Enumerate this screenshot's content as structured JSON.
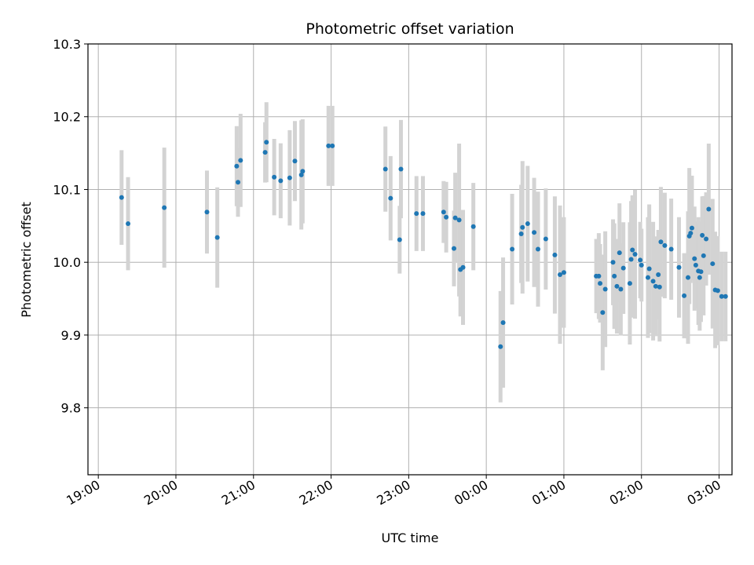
{
  "chart_data": {
    "type": "scatter",
    "title": "Photometric offset variation",
    "xlabel": "UTC time",
    "ylabel": "Photometric offset",
    "x_tick_labels": [
      "19:00",
      "20:00",
      "21:00",
      "22:00",
      "23:00",
      "00:00",
      "01:00",
      "02:00",
      "03:00"
    ],
    "y_tick_labels": [
      "9.8",
      "9.9",
      "10.0",
      "10.1",
      "10.2",
      "10.3"
    ],
    "x_unit": "minutes after 19:00 UTC",
    "xlim": [
      -8,
      490
    ],
    "ylim": [
      9.708,
      10.3
    ],
    "grid": true,
    "colors": {
      "point": "#1f77b4",
      "errorbar": "#d3d3d3",
      "grid": "#b0b0b0"
    },
    "series": [
      {
        "points": [
          [
            18,
            10.089,
            0.13
          ],
          [
            23,
            10.053,
            0.128
          ],
          [
            51,
            10.075,
            0.165
          ],
          [
            84,
            10.069,
            0.114
          ],
          [
            92,
            10.034,
            0.138
          ],
          [
            107,
            10.132,
            0.11
          ],
          [
            108,
            10.11,
            0.095
          ],
          [
            110,
            10.14,
            0.128
          ],
          [
            129,
            10.151,
            0.083
          ],
          [
            130,
            10.165,
            0.11
          ],
          [
            136,
            10.117,
            0.105
          ],
          [
            141,
            10.112,
            0.103
          ],
          [
            148,
            10.116,
            0.131
          ],
          [
            152,
            10.139,
            0.11
          ],
          [
            157,
            10.12,
            0.15
          ],
          [
            158,
            10.125,
            0.143
          ],
          [
            178,
            10.16,
            0.11
          ],
          [
            181,
            10.16,
            0.11
          ],
          [
            222,
            10.128,
            0.117
          ],
          [
            226,
            10.088,
            0.116
          ],
          [
            233,
            10.031,
            0.093
          ],
          [
            234,
            10.128,
            0.135
          ],
          [
            246,
            10.067,
            0.103
          ],
          [
            251,
            10.067,
            0.103
          ],
          [
            267,
            10.069,
            0.085
          ],
          [
            269,
            10.062,
            0.097
          ],
          [
            275,
            10.019,
            0.104
          ],
          [
            276,
            10.061,
            0.124
          ],
          [
            279,
            10.058,
            0.21
          ],
          [
            280,
            9.99,
            0.129
          ],
          [
            282,
            9.993,
            0.158
          ],
          [
            290,
            10.049,
            0.12
          ],
          [
            311,
            9.884,
            0.153
          ],
          [
            313,
            9.917,
            0.179
          ],
          [
            320,
            10.018,
            0.152
          ],
          [
            327,
            10.039,
            0.135
          ],
          [
            328,
            10.048,
            0.182
          ],
          [
            332,
            10.053,
            0.159
          ],
          [
            337,
            10.041,
            0.15
          ],
          [
            340,
            10.018,
            0.158
          ],
          [
            346,
            10.032,
            0.139
          ],
          [
            353,
            10.01,
            0.161
          ],
          [
            357,
            9.983,
            0.19
          ],
          [
            360,
            9.986,
            0.152
          ],
          [
            385,
            9.981,
            0.102
          ],
          [
            387,
            9.981,
            0.118
          ],
          [
            388,
            9.971,
            0.108
          ],
          [
            390,
            9.931,
            0.159
          ],
          [
            392,
            9.963,
            0.159
          ],
          [
            398,
            10.0,
            0.118
          ],
          [
            399,
            9.981,
            0.145
          ],
          [
            401,
            9.967,
            0.13
          ],
          [
            403,
            10.013,
            0.136
          ],
          [
            404,
            9.963,
            0.127
          ],
          [
            406,
            9.992,
            0.126
          ],
          [
            411,
            9.971,
            0.168
          ],
          [
            412,
            10.004,
            0.16
          ],
          [
            413,
            10.017,
            0.15
          ],
          [
            415,
            10.011,
            0.177
          ],
          [
            419,
            10.003,
            0.105
          ],
          [
            420,
            9.996,
            0.1
          ],
          [
            425,
            9.979,
            0.166
          ],
          [
            426,
            9.991,
            0.177
          ],
          [
            429,
            9.974,
            0.163
          ],
          [
            431,
            9.967,
            0.137
          ],
          [
            433,
            9.983,
            0.123
          ],
          [
            434,
            9.966,
            0.15
          ],
          [
            435,
            10.028,
            0.151
          ],
          [
            438,
            10.023,
            0.145
          ],
          [
            443,
            10.018,
            0.139
          ],
          [
            449,
            9.993,
            0.138
          ],
          [
            453,
            9.954,
            0.117
          ],
          [
            456,
            9.979,
            0.182
          ],
          [
            457,
            10.036,
            0.187
          ],
          [
            458,
            10.04,
            0.137
          ],
          [
            459,
            10.047,
            0.144
          ],
          [
            461,
            10.005,
            0.143
          ],
          [
            462,
            9.996,
            0.12
          ],
          [
            464,
            9.988,
            0.148
          ],
          [
            465,
            9.979,
            0.146
          ],
          [
            466,
            9.987,
            0.138
          ],
          [
            467,
            10.037,
            0.107
          ],
          [
            468,
            10.009,
            0.164
          ],
          [
            470,
            10.032,
            0.128
          ],
          [
            472,
            10.073,
            0.18
          ],
          [
            475,
            9.998,
            0.178
          ],
          [
            477,
            9.962,
            0.16
          ],
          [
            479,
            9.961,
            0.15
          ],
          [
            482,
            9.953,
            0.123
          ],
          [
            485,
            9.953,
            0.123
          ]
        ]
      }
    ]
  }
}
